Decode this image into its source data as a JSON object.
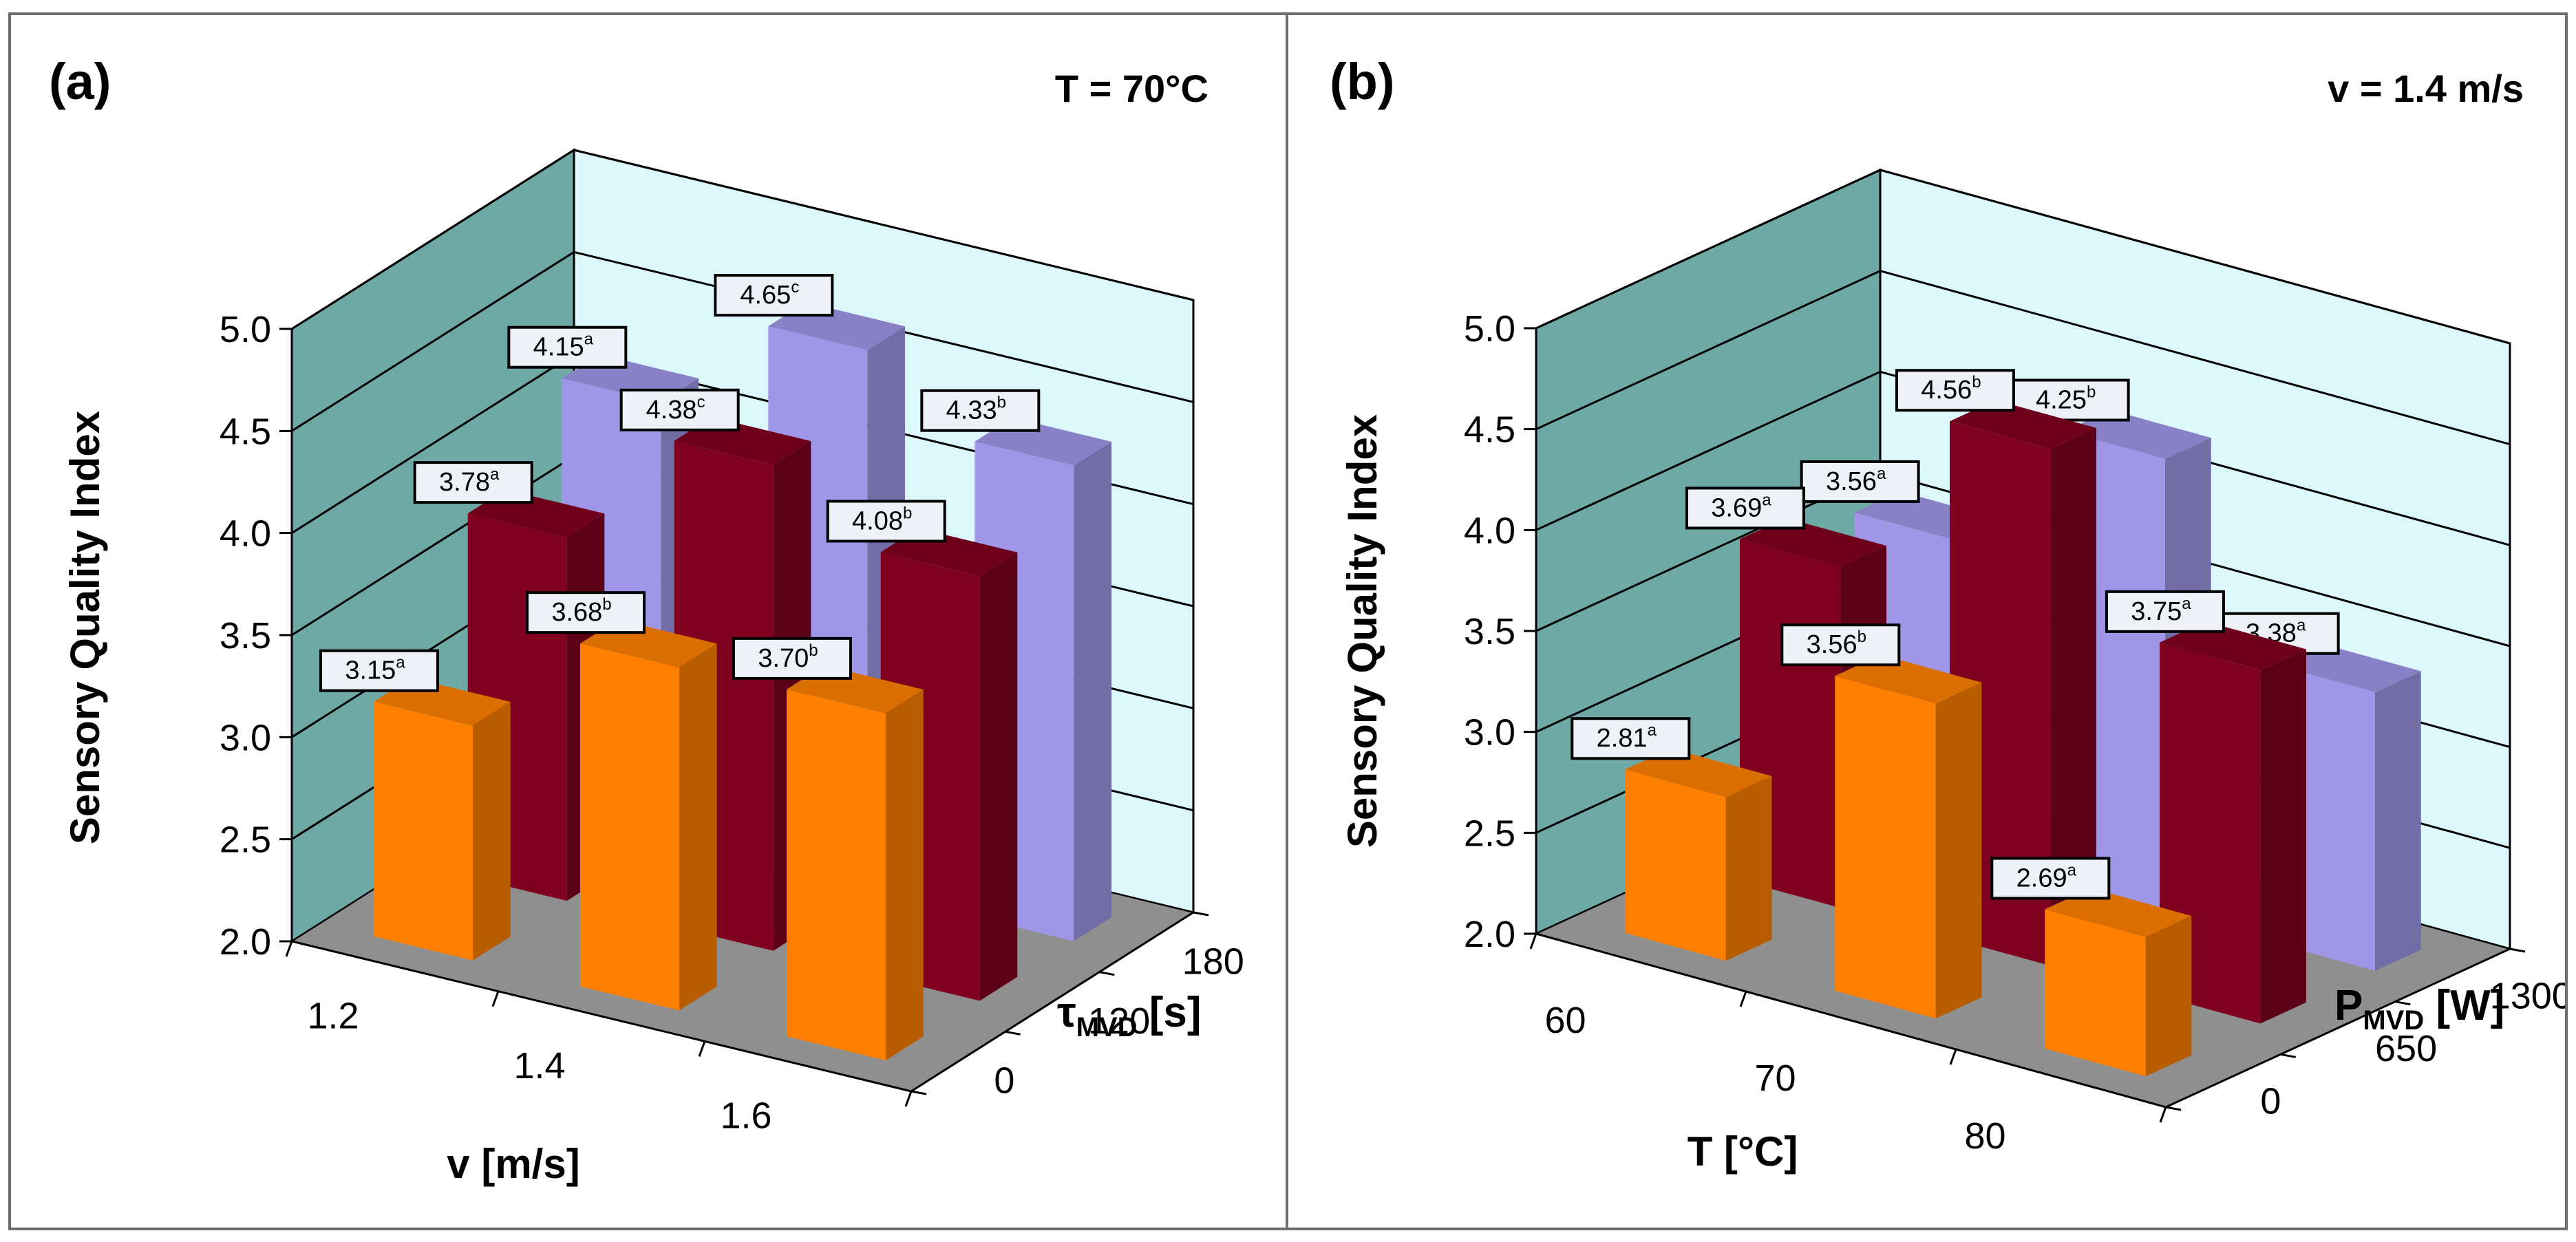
{
  "chart_data": [
    {
      "type": "bar",
      "label": "(a)",
      "title": "T = 70°C",
      "ylabel": "Sensory Quality Index",
      "xlabel": "v [m/s]",
      "zlabel_main": "τ",
      "zlabel_sub": "MVD",
      "zlabel_unit": " [s]",
      "ylim": [
        2.0,
        5.0
      ],
      "yticks": [
        "2.0",
        "2.5",
        "3.0",
        "3.5",
        "4.0",
        "4.5",
        "5.0"
      ],
      "categories": [
        "1.2",
        "1.4",
        "1.6"
      ],
      "series": [
        {
          "name": "0",
          "color": "#ff8000",
          "values": [
            3.15,
            3.68,
            3.7
          ],
          "letters": [
            "a",
            "b",
            "b"
          ]
        },
        {
          "name": "120",
          "color": "#800020",
          "values": [
            3.78,
            4.38,
            4.08
          ],
          "letters": [
            "a",
            "c",
            "b"
          ]
        },
        {
          "name": "180",
          "color": "#9f96e8",
          "values": [
            4.15,
            4.65,
            4.33
          ],
          "letters": [
            "a",
            "c",
            "b"
          ]
        }
      ]
    },
    {
      "type": "bar",
      "label": "(b)",
      "title": "v = 1.4 m/s",
      "ylabel": "Sensory Quality Index",
      "xlabel": "T [°C]",
      "zlabel_main": "P",
      "zlabel_sub": "MVD",
      "zlabel_unit": " [W]",
      "ylim": [
        2.0,
        5.0
      ],
      "yticks": [
        "2.0",
        "2.5",
        "3.0",
        "3.5",
        "4.0",
        "4.5",
        "5.0"
      ],
      "categories": [
        "60",
        "70",
        "80"
      ],
      "series": [
        {
          "name": "0",
          "color": "#ff8000",
          "values": [
            2.81,
            3.56,
            2.69
          ],
          "letters": [
            "a",
            "b",
            "a"
          ]
        },
        {
          "name": "650",
          "color": "#800020",
          "values": [
            3.69,
            4.56,
            3.75
          ],
          "letters": [
            "a",
            "b",
            "a"
          ]
        },
        {
          "name": "1300",
          "color": "#9f96e8",
          "values": [
            3.56,
            4.25,
            3.38
          ],
          "letters": [
            "a",
            "b",
            "a"
          ]
        }
      ]
    }
  ]
}
